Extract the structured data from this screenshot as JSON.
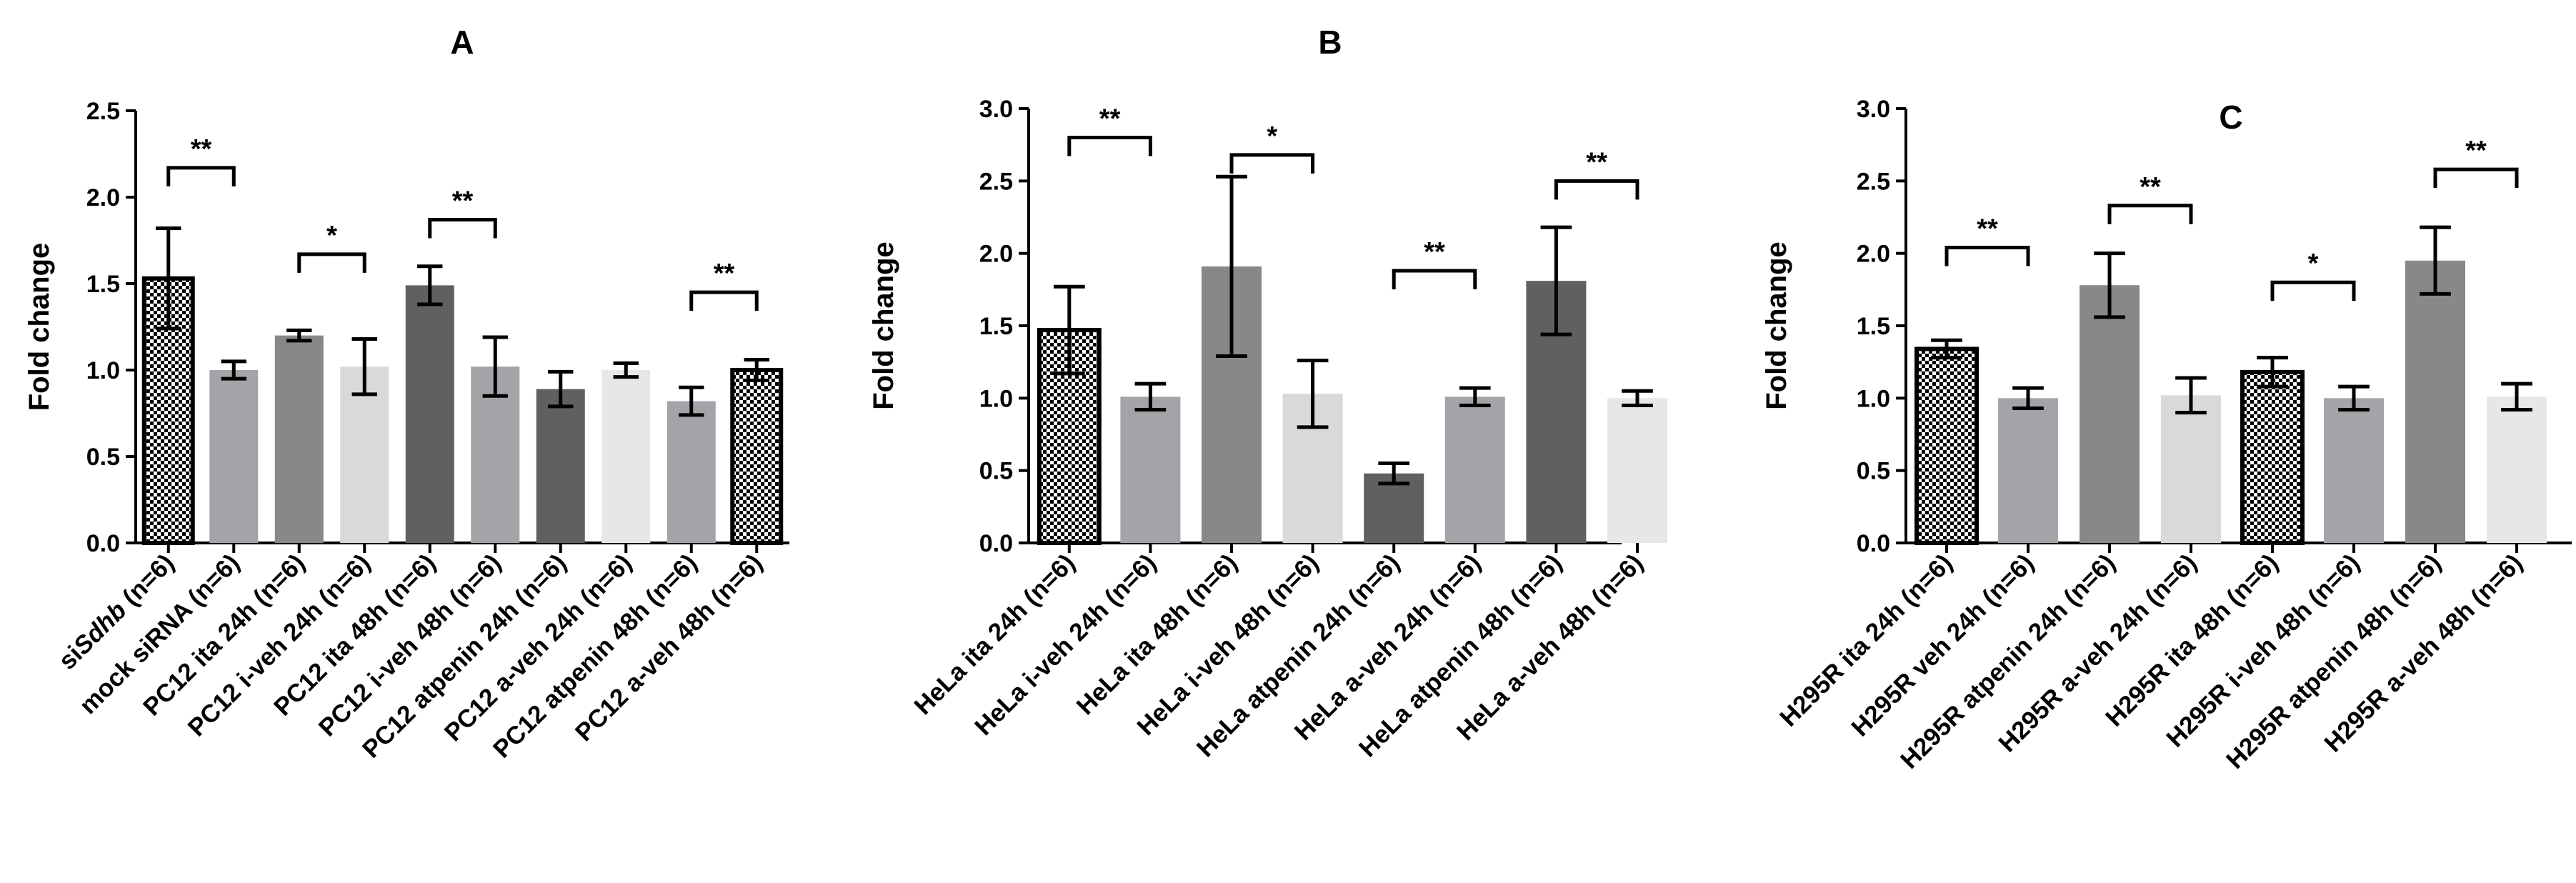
{
  "chart_data": [
    {
      "type": "bar",
      "title": "A",
      "ylabel": "Fold change",
      "xlabel": "",
      "ylim": [
        0,
        2.5
      ],
      "yticks": [
        "0.0",
        "0.5",
        "1.0",
        "1.5",
        "2.0",
        "2.5"
      ],
      "categories": [
        [
          "si",
          "Sdhb",
          " (n=6)"
        ],
        "mock siRNA (n=6)",
        "PC12 ita 24h (n=6)",
        "PC12 i-veh 24h (n=6)",
        "PC12 ita 48h (n=6)",
        "PC12 i-veh 48h (n=6)",
        "PC12 atpenin 24h (n=6)",
        "PC12 a-veh 24h (n=6)",
        "PC12 atpenin 48h (n=6)",
        "PC12 a-veh 48h (n=6)"
      ],
      "values": [
        1.53,
        1.0,
        1.2,
        1.02,
        1.49,
        1.02,
        0.89,
        1.0,
        0.82,
        1.0
      ],
      "errors": [
        0.29,
        0.05,
        0.03,
        0.16,
        0.11,
        0.17,
        0.1,
        0.04,
        0.08,
        0.06
      ],
      "fills": [
        "checker",
        "#a2a4a8",
        "#88888a",
        "#d8d9db",
        "#606062",
        "#a2a4a8",
        "#606062",
        "#e6e7e9",
        "#a2a4a8",
        "checker"
      ],
      "significance": [
        {
          "from": 0,
          "to": 1,
          "label": "**",
          "y": 2.17
        },
        {
          "from": 2,
          "to": 3,
          "label": "*",
          "y": 1.67
        },
        {
          "from": 4,
          "to": 5,
          "label": "**",
          "y": 1.87
        },
        {
          "from": 8,
          "to": 9,
          "label": "**",
          "y": 1.45
        }
      ]
    },
    {
      "type": "bar",
      "title": "B",
      "ylabel": "Fold change",
      "xlabel": "",
      "ylim": [
        0,
        3.0
      ],
      "yticks": [
        "0.0",
        "0.5",
        "1.0",
        "1.5",
        "2.0",
        "2.5",
        "3.0"
      ],
      "categories": [
        "HeLa ita 24h (n=6)",
        "HeLa i-veh 24h (n=6)",
        "HeLa ita 48h (n=6)",
        "HeLa i-veh 48h (n=6)",
        "HeLa atpenin 24h (n=6)",
        "HeLa a-veh 24h (n=6)",
        "HeLa atpenin 48h (n=6)",
        "HeLa a-veh 48h (n=6)"
      ],
      "values": [
        1.47,
        1.01,
        1.91,
        1.03,
        0.48,
        1.01,
        1.81,
        1.0
      ],
      "errors": [
        0.3,
        0.09,
        0.62,
        0.23,
        0.07,
        0.06,
        0.37,
        0.05
      ],
      "fills": [
        "checker",
        "#a2a4a8",
        "#88888a",
        "#d8d9db",
        "#606062",
        "#a2a4a8",
        "#606062",
        "#e6e7e9"
      ],
      "significance": [
        {
          "from": 0,
          "to": 1,
          "label": "**",
          "y": 2.8
        },
        {
          "from": 2,
          "to": 3,
          "label": "*",
          "y": 2.68
        },
        {
          "from": 4,
          "to": 5,
          "label": "**",
          "y": 1.88
        },
        {
          "from": 6,
          "to": 7,
          "label": "**",
          "y": 2.5
        }
      ]
    },
    {
      "type": "bar",
      "title": "C",
      "ylabel": "Fold change",
      "xlabel": "",
      "ylim": [
        0,
        3.0
      ],
      "yticks": [
        "0.0",
        "0.5",
        "1.0",
        "1.5",
        "2.0",
        "2.5",
        "3.0"
      ],
      "categories": [
        "H295R ita 24h (n=6)",
        "H295R veh 24h (n=6)",
        "H295R atpenin 24h (n=6)",
        "H295R a-veh 24h (n=6)",
        "H295R ita 48h (n=6)",
        "H295R i-veh 48h (n=6)",
        "H295R atpenin 48h (n=6)",
        "H295R a-veh 48h (n=6)"
      ],
      "values": [
        1.34,
        1.0,
        1.78,
        1.02,
        1.18,
        1.0,
        1.95,
        1.01
      ],
      "errors": [
        0.06,
        0.07,
        0.22,
        0.12,
        0.1,
        0.08,
        0.23,
        0.09
      ],
      "fills": [
        "checker",
        "#a2a4a8",
        "#88888a",
        "#d8d9db",
        "checker",
        "#a2a4a8",
        "#88888a",
        "#e6e7e9"
      ],
      "significance": [
        {
          "from": 0,
          "to": 1,
          "label": "**",
          "y": 2.04
        },
        {
          "from": 2,
          "to": 3,
          "label": "**",
          "y": 2.33
        },
        {
          "from": 4,
          "to": 5,
          "label": "*",
          "y": 1.8
        },
        {
          "from": 6,
          "to": 7,
          "label": "**",
          "y": 2.58
        }
      ]
    }
  ]
}
